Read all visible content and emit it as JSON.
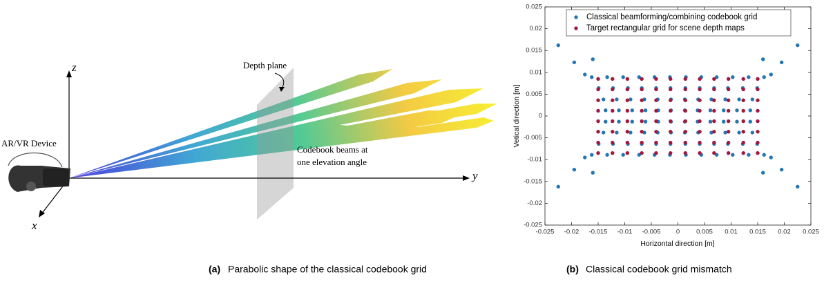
{
  "illustration": {
    "axis_z": "z",
    "axis_y": "y",
    "axis_x": "x",
    "device": "AR/VR Device",
    "plane": "Depth plane",
    "beams": [
      "Codebook beams at",
      "one elevation angle"
    ]
  },
  "captions": [
    {
      "tag": "(a)",
      "text": "Parabolic shape of the classical codebook grid"
    },
    {
      "tag": "(b)",
      "text": "Classical codebook grid mismatch"
    }
  ],
  "chart_data": {
    "type": "scatter",
    "xlabel": "Horizontal direction [m]",
    "ylabel": "Vetical direction [m]",
    "xlim": [
      -0.025,
      0.025
    ],
    "ylim": [
      -0.025,
      0.025
    ],
    "xticks": [
      -0.025,
      -0.02,
      -0.015,
      -0.01,
      -0.005,
      0,
      0.005,
      0.01,
      0.015,
      0.02,
      0.025
    ],
    "yticks": [
      -0.025,
      -0.02,
      -0.015,
      -0.01,
      -0.005,
      0,
      0.005,
      0.01,
      0.015,
      0.02,
      0.025
    ],
    "grid": false,
    "legend": "top",
    "series": [
      {
        "name": "Classical beamforming/combining codebook grid",
        "color": "#2276b4",
        "x": [
          -0.0162,
          -0.0133,
          -0.0103,
          -0.0073,
          -0.0044,
          -0.0015,
          0.0015,
          0.0044,
          0.0073,
          0.0103,
          0.0133,
          0.0162,
          -0.0149,
          -0.0122,
          -0.0094,
          -0.0068,
          -0.0041,
          -0.0014,
          0.0014,
          0.0041,
          0.0068,
          0.0094,
          0.0122,
          0.0149,
          -0.014,
          -0.0115,
          -0.0089,
          -0.0063,
          -0.0038,
          -0.0013,
          0.0013,
          0.0038,
          0.0063,
          0.0089,
          0.0115,
          0.014,
          -0.0136,
          -0.0111,
          -0.0086,
          -0.0061,
          -0.0037,
          -0.0013,
          0.0013,
          0.0037,
          0.0061,
          0.0086,
          0.0111,
          0.0136,
          -0.0136,
          -0.0111,
          -0.0086,
          -0.0061,
          -0.0037,
          -0.0013,
          0.0013,
          0.0037,
          0.0061,
          0.0086,
          0.0111,
          0.0136,
          -0.014,
          -0.0115,
          -0.0089,
          -0.0063,
          -0.0038,
          -0.0013,
          0.0013,
          0.0038,
          0.0063,
          0.0089,
          0.0115,
          0.014,
          -0.0149,
          -0.0122,
          -0.0094,
          -0.0068,
          -0.0041,
          -0.0014,
          0.0014,
          0.0041,
          0.0068,
          0.0094,
          0.0122,
          0.0149,
          -0.0162,
          -0.0133,
          -0.0103,
          -0.0073,
          -0.0044,
          -0.0015,
          0.0015,
          0.0044,
          0.0073,
          0.0103,
          0.0133,
          0.0162,
          -0.0225,
          0.0225,
          -0.0225,
          0.0225,
          -0.0195,
          0.0195,
          -0.0195,
          0.0195,
          -0.0175,
          0.0175,
          -0.0175,
          0.0175,
          -0.016,
          0.016,
          -0.016,
          0.016
        ],
        "y": [
          0.0089,
          0.0089,
          0.0089,
          0.0089,
          0.0089,
          0.0089,
          0.0089,
          0.0089,
          0.0089,
          0.0089,
          0.0089,
          0.0089,
          0.0064,
          0.0064,
          0.0064,
          0.0064,
          0.0064,
          0.0064,
          0.0064,
          0.0064,
          0.0064,
          0.0064,
          0.0064,
          0.0064,
          0.0038,
          0.0038,
          0.0038,
          0.0038,
          0.0038,
          0.0038,
          0.0038,
          0.0038,
          0.0038,
          0.0038,
          0.0038,
          0.0038,
          0.0013,
          0.0013,
          0.0013,
          0.0013,
          0.0013,
          0.0013,
          0.0013,
          0.0013,
          0.0013,
          0.0013,
          0.0013,
          0.0013,
          -0.0013,
          -0.0013,
          -0.0013,
          -0.0013,
          -0.0013,
          -0.0013,
          -0.0013,
          -0.0013,
          -0.0013,
          -0.0013,
          -0.0013,
          -0.0013,
          -0.0038,
          -0.0038,
          -0.0038,
          -0.0038,
          -0.0038,
          -0.0038,
          -0.0038,
          -0.0038,
          -0.0038,
          -0.0038,
          -0.0038,
          -0.0038,
          -0.0064,
          -0.0064,
          -0.0064,
          -0.0064,
          -0.0064,
          -0.0064,
          -0.0064,
          -0.0064,
          -0.0064,
          -0.0064,
          -0.0064,
          -0.0064,
          -0.0089,
          -0.0089,
          -0.0089,
          -0.0089,
          -0.0089,
          -0.0089,
          -0.0089,
          -0.0089,
          -0.0089,
          -0.0089,
          -0.0089,
          -0.0089,
          0.0162,
          0.0162,
          -0.0162,
          -0.0162,
          0.0123,
          0.0123,
          -0.0123,
          -0.0123,
          0.0095,
          0.0095,
          -0.0095,
          -0.0095,
          0.013,
          0.013,
          -0.013,
          -0.013
        ]
      },
      {
        "name": "Target rectangular grid for scene depth maps",
        "color": "#a3183c",
        "x": [
          -0.015,
          -0.0123,
          -0.0095,
          -0.0068,
          -0.0041,
          -0.0014,
          0.0014,
          0.0041,
          0.0068,
          0.0095,
          0.0123,
          0.015,
          -0.015,
          -0.0123,
          -0.0095,
          -0.0068,
          -0.0041,
          -0.0014,
          0.0014,
          0.0041,
          0.0068,
          0.0095,
          0.0123,
          0.015,
          -0.015,
          -0.0123,
          -0.0095,
          -0.0068,
          -0.0041,
          -0.0014,
          0.0014,
          0.0041,
          0.0068,
          0.0095,
          0.0123,
          0.015,
          -0.015,
          -0.0123,
          -0.0095,
          -0.0068,
          -0.0041,
          -0.0014,
          0.0014,
          0.0041,
          0.0068,
          0.0095,
          0.0123,
          0.015,
          -0.015,
          -0.0123,
          -0.0095,
          -0.0068,
          -0.0041,
          -0.0014,
          0.0014,
          0.0041,
          0.0068,
          0.0095,
          0.0123,
          0.015,
          -0.015,
          -0.0123,
          -0.0095,
          -0.0068,
          -0.0041,
          -0.0014,
          0.0014,
          0.0041,
          0.0068,
          0.0095,
          0.0123,
          0.015,
          -0.015,
          -0.0123,
          -0.0095,
          -0.0068,
          -0.0041,
          -0.0014,
          0.0014,
          0.0041,
          0.0068,
          0.0095,
          0.0123,
          0.015,
          -0.015,
          -0.0123,
          -0.0095,
          -0.0068,
          -0.0041,
          -0.0014,
          0.0014,
          0.0041,
          0.0068,
          0.0095,
          0.0123,
          0.015
        ],
        "y": [
          0.0085,
          0.0085,
          0.0085,
          0.0085,
          0.0085,
          0.0085,
          0.0085,
          0.0085,
          0.0085,
          0.0085,
          0.0085,
          0.0085,
          0.0061,
          0.0061,
          0.0061,
          0.0061,
          0.0061,
          0.0061,
          0.0061,
          0.0061,
          0.0061,
          0.0061,
          0.0061,
          0.0061,
          0.0036,
          0.0036,
          0.0036,
          0.0036,
          0.0036,
          0.0036,
          0.0036,
          0.0036,
          0.0036,
          0.0036,
          0.0036,
          0.0036,
          0.0012,
          0.0012,
          0.0012,
          0.0012,
          0.0012,
          0.0012,
          0.0012,
          0.0012,
          0.0012,
          0.0012,
          0.0012,
          0.0012,
          -0.0012,
          -0.0012,
          -0.0012,
          -0.0012,
          -0.0012,
          -0.0012,
          -0.0012,
          -0.0012,
          -0.0012,
          -0.0012,
          -0.0012,
          -0.0012,
          -0.0036,
          -0.0036,
          -0.0036,
          -0.0036,
          -0.0036,
          -0.0036,
          -0.0036,
          -0.0036,
          -0.0036,
          -0.0036,
          -0.0036,
          -0.0036,
          -0.0061,
          -0.0061,
          -0.0061,
          -0.0061,
          -0.0061,
          -0.0061,
          -0.0061,
          -0.0061,
          -0.0061,
          -0.0061,
          -0.0061,
          -0.0061,
          -0.0085,
          -0.0085,
          -0.0085,
          -0.0085,
          -0.0085,
          -0.0085,
          -0.0085,
          -0.0085,
          -0.0085,
          -0.0085,
          -0.0085,
          -0.0085
        ]
      }
    ]
  }
}
